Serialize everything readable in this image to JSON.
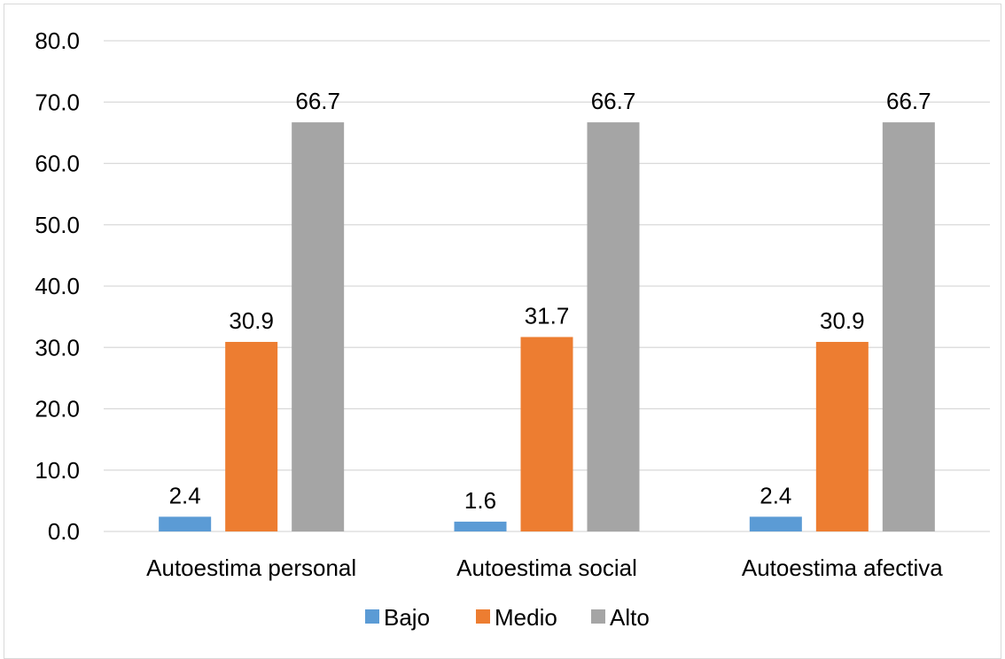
{
  "chart_data": {
    "type": "bar",
    "categories": [
      "Autoestima personal",
      "Autoestima social",
      "Autoestima afectiva"
    ],
    "series": [
      {
        "name": "Bajo",
        "values": [
          2.4,
          1.6,
          2.4
        ],
        "labels": [
          "2.4",
          "1.6",
          "2.4"
        ],
        "color": "#5b9bd5"
      },
      {
        "name": "Medio",
        "values": [
          30.9,
          31.7,
          30.9
        ],
        "labels": [
          "30.9",
          "31.7",
          "30.9"
        ],
        "color": "#ed7d31"
      },
      {
        "name": "Alto",
        "values": [
          66.7,
          66.7,
          66.7
        ],
        "labels": [
          "66.7",
          "66.7",
          "66.7"
        ],
        "color": "#a5a5a5"
      }
    ],
    "ylim": [
      0,
      80
    ],
    "yticks": [
      "0.0",
      "10.0",
      "20.0",
      "30.0",
      "40.0",
      "50.0",
      "60.0",
      "70.0",
      "80.0"
    ],
    "ytick_values": [
      0,
      10,
      20,
      30,
      40,
      50,
      60,
      70,
      80
    ],
    "title": "",
    "xlabel": "",
    "ylabel": "",
    "grid": true,
    "legend_position": "bottom",
    "gridline_color": "#d9d9d9"
  }
}
